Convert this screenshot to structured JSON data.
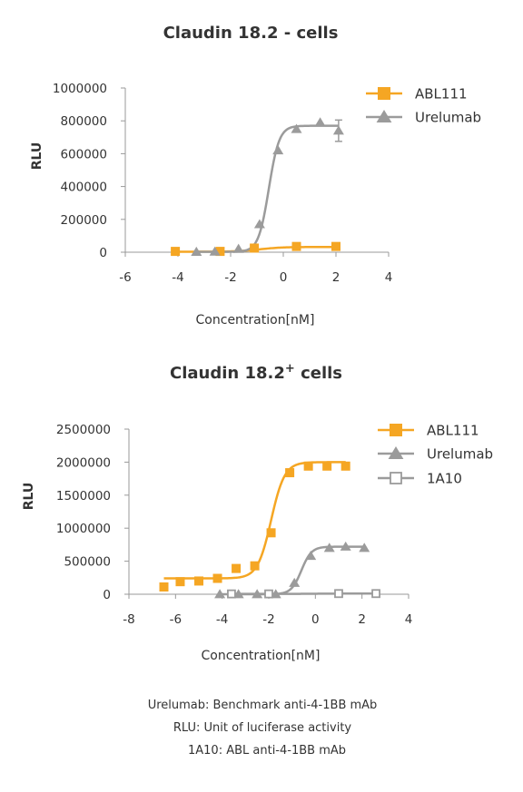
{
  "chart_data": [
    {
      "type": "scatter",
      "title": "Claudin 18.2 - cells",
      "xlabel": "Concentration[nM]",
      "ylabel": "RLU",
      "xlim": [
        -6,
        4
      ],
      "ylim": [
        0,
        1000000
      ],
      "x_ticks": [
        "-6",
        "-4",
        "-2",
        "0",
        "2",
        "4"
      ],
      "y_ticks": [
        "0",
        "200000",
        "400000",
        "600000",
        "800000",
        "1000000"
      ],
      "legend_position": "top-right",
      "series": [
        {
          "name": "ABL111",
          "marker": "square",
          "color": "#F5A623",
          "x": [
            -4.1,
            -2.4,
            -1.1,
            0.5,
            2.0
          ],
          "y": [
            5000,
            5000,
            25000,
            35000,
            35000
          ],
          "fit": {
            "bottom": 3000,
            "top": 32000,
            "ec50_log": -0.9,
            "hill": 1.0
          }
        },
        {
          "name": "Urelumab",
          "marker": "triangle",
          "color": "#9B9B9B",
          "x": [
            -3.3,
            -2.6,
            -1.7,
            -0.9,
            -0.2,
            0.5,
            1.4,
            2.1
          ],
          "y": [
            2000,
            3000,
            20000,
            170000,
            620000,
            750000,
            790000,
            740000
          ],
          "error": [
            0,
            0,
            0,
            0,
            0,
            0,
            0,
            65000
          ],
          "fit": {
            "bottom": 2000,
            "top": 770000,
            "ec50_log": -0.55,
            "hill": 2.2
          }
        }
      ]
    },
    {
      "type": "scatter",
      "title": "Claudin 18.2",
      "title_sup": "+",
      "title_suffix": " cells",
      "xlabel": "Concentration[nM]",
      "ylabel": "RLU",
      "xlim": [
        -8,
        4
      ],
      "ylim": [
        0,
        2500000
      ],
      "x_ticks": [
        "-8",
        "-6",
        "-4",
        "-2",
        "0",
        "2",
        "4"
      ],
      "y_ticks": [
        "0",
        "500000",
        "1000000",
        "1500000",
        "2000000",
        "2500000"
      ],
      "legend_position": "top-right",
      "series": [
        {
          "name": "ABL111",
          "marker": "square",
          "color": "#F5A623",
          "x": [
            -6.5,
            -5.8,
            -5.0,
            -4.2,
            -3.4,
            -2.6,
            -1.9,
            -1.1,
            -0.3,
            0.5,
            1.3
          ],
          "y": [
            110000,
            190000,
            200000,
            240000,
            390000,
            430000,
            930000,
            1840000,
            1940000,
            1940000,
            1940000
          ],
          "fit": {
            "bottom": 240000,
            "top": 2000000,
            "ec50_log": -1.9,
            "hill": 1.5
          }
        },
        {
          "name": "Urelumab",
          "marker": "triangle",
          "color": "#9B9B9B",
          "x": [
            -4.1,
            -3.3,
            -2.5,
            -1.7,
            -0.9,
            -0.2,
            0.6,
            1.3,
            2.1
          ],
          "y": [
            0,
            0,
            0,
            0,
            170000,
            580000,
            700000,
            720000,
            700000
          ],
          "fit": {
            "bottom": 0,
            "top": 720000,
            "ec50_log": -0.6,
            "hill": 2.0
          }
        },
        {
          "name": "1A10",
          "marker": "open-square",
          "color": "#9B9B9B",
          "x": [
            -3.6,
            -2.0,
            1.0,
            2.6
          ],
          "y": [
            5000,
            5000,
            10000,
            10000
          ],
          "fit": {
            "bottom": 5000,
            "top": 10000,
            "ec50_log": 0,
            "hill": 1.0
          }
        }
      ]
    }
  ],
  "footnotes": [
    "Urelumab: Benchmark anti-4-1BB mAb",
    "RLU: Unit of luciferase activity",
    "1A10: ABL anti-4-1BB mAb"
  ]
}
